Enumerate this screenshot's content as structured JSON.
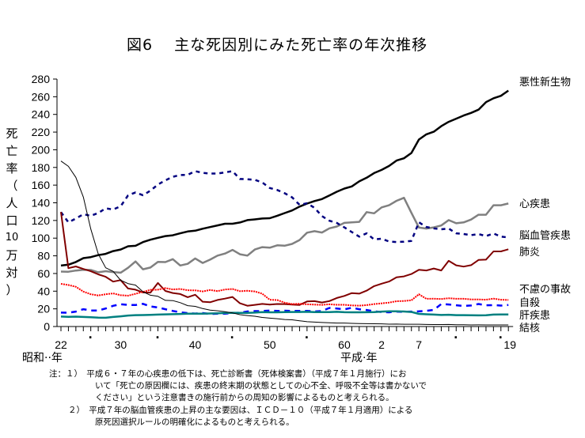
{
  "title": "図6　 主な死因別にみた死亡率の年次推移",
  "y_axis_label_chars": [
    "死",
    "亡",
    "率",
    "（",
    "人",
    "口",
    "10",
    "万",
    "対",
    "）"
  ],
  "x_unit_labels": {
    "showa": "昭和··年",
    "heisei": "平成·年"
  },
  "notes": [
    "注：１）　平成６・７年の心疾患の低下は、死亡診断書（死体検案書）（平成７年１月施行）にお",
    "いて「死亡の原因欄には、疾患の終末期の状態としての心不全、呼吸不全等は書かないで",
    "ください」という注意書きの施行前からの周知の影響によるものと考えられる。",
    "２）　平成７年の脳血管疾患の上昇の主な要因は、ＩＣＤ－１０（平成７年１月適用）による",
    "原死因選択ルールの明確化によるものと考えられる。"
  ],
  "chart_data": {
    "type": "line",
    "title": "図6　主な死因別にみた死亡率の年次推移",
    "xlabel": "年",
    "ylabel": "死亡率（人口10万対）",
    "ylim": [
      0,
      280
    ],
    "yticks": [
      0,
      20,
      40,
      60,
      80,
      100,
      120,
      140,
      160,
      180,
      200,
      220,
      240,
      260,
      280
    ],
    "x_years": [
      1947,
      1948,
      1949,
      1950,
      1951,
      1952,
      1953,
      1954,
      1955,
      1956,
      1957,
      1958,
      1959,
      1960,
      1961,
      1962,
      1963,
      1964,
      1965,
      1966,
      1967,
      1968,
      1969,
      1970,
      1971,
      1972,
      1973,
      1974,
      1975,
      1976,
      1977,
      1978,
      1979,
      1980,
      1981,
      1982,
      1983,
      1984,
      1985,
      1986,
      1987,
      1988,
      1989,
      1990,
      1991,
      1992,
      1993,
      1994,
      1995,
      1996,
      1997,
      1998,
      1999,
      2000,
      2001,
      2002,
      2003,
      2004,
      2005,
      2006,
      2007
    ],
    "x_tick_labels": [
      {
        "year": 1947,
        "label": "22"
      },
      {
        "year": 1951,
        "label": "·"
      },
      {
        "year": 1955,
        "label": "30"
      },
      {
        "year": 1960,
        "label": "·"
      },
      {
        "year": 1965,
        "label": "40"
      },
      {
        "year": 1970,
        "label": "·"
      },
      {
        "year": 1975,
        "label": "50"
      },
      {
        "year": 1980,
        "label": "·"
      },
      {
        "year": 1985,
        "label": "60"
      },
      {
        "year": 1990,
        "label": "2"
      },
      {
        "year": 1995,
        "label": "7"
      },
      {
        "year": 2000,
        "label": "·"
      },
      {
        "year": 2006,
        "label": "·"
      },
      {
        "year": 2007,
        "label": "19"
      }
    ],
    "legend": "right-end labels",
    "series": [
      {
        "name": "悪性新生物",
        "color": "#000000",
        "width": 2.5,
        "dash": "",
        "values": [
          69.0,
          70.0,
          73.0,
          77.4,
          78.5,
          80.8,
          82.2,
          85.3,
          87.1,
          90.8,
          91.3,
          95.5,
          98.2,
          100.4,
          102.3,
          103.2,
          105.5,
          107.5,
          108.4,
          110.7,
          112.5,
          114.4,
          116.3,
          116.3,
          117.7,
          120.4,
          121.2,
          122.2,
          122.6,
          125.3,
          128.4,
          131.3,
          135.7,
          139.1,
          142.0,
          144.2,
          148.3,
          152.5,
          156.1,
          158.5,
          164.2,
          168.4,
          173.6,
          177.2,
          181.7,
          187.8,
          190.4,
          196.4,
          211.6,
          217.5,
          220.4,
          226.7,
          231.6,
          235.2,
          238.8,
          241.7,
          245.4,
          253.9,
          258.3,
          261.0,
          266.9
        ]
      },
      {
        "name": "心疾患",
        "color": "#808080",
        "width": 2.5,
        "dash": "",
        "values": [
          62.2,
          62.0,
          63.3,
          64.2,
          64.0,
          61.4,
          62.6,
          61.6,
          60.9,
          66.5,
          73.6,
          64.8,
          66.7,
          73.2,
          72.9,
          76.2,
          69.1,
          70.9,
          77.0,
          71.9,
          75.7,
          80.2,
          82.6,
          86.7,
          81.8,
          80.2,
          87.1,
          89.8,
          89.2,
          91.9,
          91.4,
          93.5,
          97.9,
          106.2,
          107.9,
          106.4,
          111.1,
          113.2,
          117.3,
          117.9,
          118.4,
          129.4,
          128.1,
          134.8,
          137.2,
          142.2,
          145.6,
          128.6,
          112.0,
          110.8,
          112.2,
          114.3,
          120.4,
          116.8,
          117.8,
          121.0,
          126.5,
          126.5,
          137.2,
          137.2,
          139.2
        ]
      },
      {
        "name": "脳血管疾患",
        "color": "#000080",
        "width": 2.5,
        "dash": "5,5",
        "values": [
          129.4,
          117.9,
          122.2,
          127.1,
          125.2,
          128.5,
          133.7,
          132.4,
          136.1,
          148.4,
          151.7,
          148.6,
          153.7,
          160.7,
          165.4,
          169.4,
          171.4,
          171.7,
          175.8,
          173.8,
          173.1,
          173.1,
          174.4,
          175.8,
          166.9,
          166.7,
          166.0,
          163.0,
          156.7,
          154.5,
          150.8,
          146.2,
          137.7,
          139.5,
          134.3,
          125.0,
          119.7,
          117.2,
          112.2,
          106.9,
          101.7,
          105.5,
          98.5,
          99.4,
          96.2,
          95.6,
          96.0,
          96.9,
          117.9,
          112.6,
          111.0,
          110.0,
          110.8,
          105.5,
          104.7,
          103.4,
          104.7,
          102.3,
          105.3,
          101.7,
          100.8
        ]
      },
      {
        "name": "肺炎",
        "color": "#800000",
        "width": 2,
        "dash": "",
        "values": [
          129.6,
          66.0,
          68.0,
          65.1,
          62.5,
          59.0,
          56.3,
          50.8,
          52.5,
          43.0,
          41.7,
          38.6,
          38.4,
          49.3,
          40.3,
          37.9,
          36.8,
          33.2,
          36.0,
          28.1,
          27.5,
          30.1,
          31.6,
          33.5,
          26.3,
          23.5,
          24.5,
          25.6,
          24.9,
          25.5,
          25.4,
          24.9,
          24.4,
          28.4,
          28.7,
          27.2,
          28.8,
          32.3,
          34.6,
          37.8,
          37.2,
          40.6,
          45.7,
          48.5,
          50.9,
          55.7,
          56.7,
          59.4,
          64.1,
          63.4,
          65.7,
          63.4,
          74.3,
          69.2,
          67.8,
          69.4,
          75.3,
          75.7,
          85.0,
          85.0,
          87.4
        ]
      },
      {
        "name": "不慮の事故",
        "color": "#ff0000",
        "width": 2,
        "dash": "2,1",
        "values": [
          48.3,
          47.0,
          45.0,
          39.5,
          36.5,
          35.2,
          36.5,
          37.5,
          35.4,
          34.9,
          37.0,
          39.2,
          41.5,
          41.7,
          43.5,
          42.0,
          42.5,
          41.1,
          40.9,
          39.7,
          41.3,
          40.1,
          41.9,
          42.5,
          40.0,
          40.4,
          39.7,
          37.1,
          30.3,
          30.0,
          27.0,
          25.4,
          25.8,
          25.1,
          24.8,
          24.5,
          25.1,
          24.6,
          24.6,
          23.9,
          23.6,
          24.2,
          25.4,
          26.2,
          27.1,
          28.6,
          28.9,
          29.7,
          36.5,
          31.4,
          31.5,
          31.1,
          32.0,
          31.4,
          31.4,
          30.7,
          30.7,
          30.3,
          31.6,
          30.3,
          30.1
        ]
      },
      {
        "name": "自殺",
        "color": "#0000ff",
        "width": 2.5,
        "dash": "7,6",
        "values": [
          15.7,
          15.6,
          16.9,
          19.6,
          18.2,
          18.2,
          20.4,
          23.4,
          25.2,
          24.5,
          24.3,
          25.7,
          22.7,
          21.6,
          19.6,
          17.6,
          16.1,
          15.1,
          14.7,
          15.2,
          14.2,
          14.5,
          14.5,
          15.3,
          15.6,
          17.0,
          17.4,
          17.5,
          18.0,
          17.6,
          17.9,
          17.6,
          17.7,
          17.7,
          17.1,
          17.5,
          21.0,
          20.4,
          19.4,
          21.2,
          19.6,
          18.7,
          17.3,
          16.4,
          16.1,
          16.9,
          16.6,
          16.9,
          17.2,
          17.8,
          18.8,
          25.4,
          25.0,
          24.1,
          23.3,
          23.8,
          25.5,
          24.0,
          24.2,
          23.7,
          24.4
        ]
      },
      {
        "name": "肝疾患",
        "color": "#008080",
        "width": 2.5,
        "dash": "",
        "values": [
          11.3,
          11.0,
          11.2,
          10.8,
          10.5,
          10.0,
          9.9,
          10.8,
          11.5,
          12.4,
          12.9,
          13.0,
          13.2,
          13.5,
          13.8,
          14.0,
          14.2,
          14.5,
          14.6,
          14.6,
          14.8,
          15.0,
          15.3,
          15.6,
          15.5,
          15.5,
          15.7,
          16.4,
          16.1,
          16.1,
          16.3,
          16.5,
          16.5,
          16.6,
          16.4,
          16.3,
          16.4,
          16.6,
          16.2,
          16.1,
          16.1,
          16.2,
          16.4,
          16.9,
          17.2,
          17.3,
          17.0,
          16.5,
          14.3,
          13.9,
          13.5,
          13.1,
          13.3,
          12.9,
          12.9,
          12.8,
          12.6,
          12.8,
          13.5,
          13.6,
          13.6
        ]
      },
      {
        "name": "結核",
        "color": "#000000",
        "width": 1,
        "dash": "",
        "values": [
          187.2,
          181.2,
          168.8,
          146.4,
          110.3,
          82.2,
          66.5,
          62.4,
          52.3,
          48.6,
          46.9,
          39.4,
          35.4,
          34.2,
          29.6,
          29.3,
          27.0,
          23.6,
          22.8,
          20.3,
          18.6,
          17.8,
          16.7,
          15.4,
          13.4,
          12.4,
          11.6,
          10.3,
          9.5,
          8.9,
          8.0,
          7.6,
          6.5,
          5.5,
          5.0,
          4.6,
          4.2,
          3.9,
          3.9,
          3.6,
          3.4,
          3.2,
          3.1,
          3.0,
          2.7,
          2.8,
          2.6,
          2.6,
          2.6,
          2.3,
          2.2,
          2.2,
          2.3,
          2.1,
          2.0,
          1.8,
          1.9,
          1.8,
          1.8,
          1.8,
          1.8
        ]
      }
    ]
  }
}
